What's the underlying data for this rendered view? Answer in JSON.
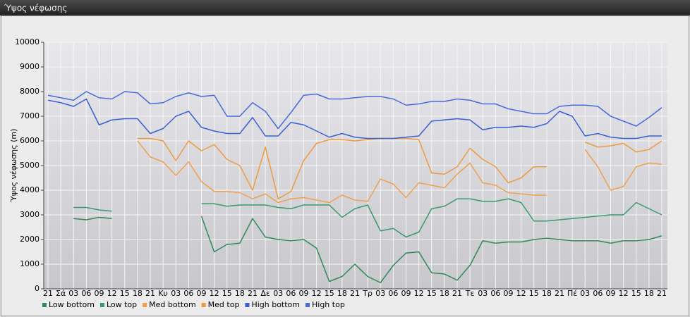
{
  "chart_data": {
    "type": "line",
    "title": "Ύψος νέφωσης",
    "y_label": "Ύψος νέφωσης (m)",
    "categories": [
      "21",
      "Σά",
      "03",
      "06",
      "09",
      "12",
      "15",
      "18",
      "21",
      "Κυ",
      "03",
      "06",
      "09",
      "12",
      "15",
      "18",
      "21",
      "Δε",
      "03",
      "06",
      "09",
      "12",
      "15",
      "18",
      "21",
      "Τρ",
      "03",
      "06",
      "09",
      "12",
      "15",
      "18",
      "21",
      "Τε",
      "03",
      "06",
      "09",
      "12",
      "15",
      "18",
      "21",
      "Πέ",
      "03",
      "06",
      "09",
      "12",
      "15",
      "18",
      "21"
    ],
    "ylim": [
      0,
      10000
    ],
    "yticks": [
      0,
      1000,
      2000,
      3000,
      4000,
      5000,
      6000,
      7000,
      8000,
      9000,
      10000
    ],
    "grid": true,
    "legend": "bottom-left",
    "series": [
      {
        "name": "Low bottom",
        "color": "#2e8b57",
        "values": [
          null,
          null,
          2850,
          2800,
          2900,
          2850,
          null,
          null,
          null,
          null,
          null,
          null,
          2950,
          1500,
          1800,
          1850,
          2850,
          2100,
          2000,
          1950,
          2000,
          1650,
          300,
          500,
          1000,
          500,
          250,
          950,
          1450,
          1500,
          650,
          600,
          350,
          950,
          1950,
          1850,
          1900,
          1900,
          2000,
          2050,
          2000,
          1950,
          1950,
          1950,
          1850,
          1950,
          1950,
          2000,
          2150
        ]
      },
      {
        "name": "Low top",
        "color": "#3a9a6a",
        "values": [
          null,
          null,
          3300,
          3300,
          3200,
          3150,
          null,
          null,
          null,
          null,
          null,
          null,
          3450,
          3450,
          3350,
          3400,
          3400,
          3400,
          3300,
          3250,
          3400,
          3400,
          3400,
          2900,
          3250,
          3400,
          2350,
          2450,
          2100,
          2300,
          3250,
          3350,
          3650,
          3650,
          3550,
          3550,
          3650,
          3500,
          2750,
          2750,
          2800,
          2850,
          2900,
          2950,
          3000,
          3000,
          3500,
          3250,
          3000
        ]
      },
      {
        "name": "Med bottom",
        "color": "#f0a050",
        "values": [
          null,
          null,
          null,
          null,
          null,
          null,
          null,
          6000,
          5350,
          5150,
          4600,
          5150,
          4350,
          3950,
          3950,
          3900,
          3650,
          3850,
          3500,
          3650,
          3700,
          3600,
          3500,
          3800,
          3600,
          3550,
          4450,
          4250,
          3700,
          4300,
          4200,
          4100,
          4650,
          5100,
          4300,
          4200,
          3900,
          3850,
          3800,
          3800,
          null,
          null,
          5650,
          4950,
          4000,
          4150,
          4950,
          5100,
          5050
        ]
      },
      {
        "name": "Med top",
        "color": "#ee9a40",
        "values": [
          null,
          null,
          null,
          null,
          null,
          null,
          null,
          6100,
          6100,
          6000,
          5200,
          6000,
          5600,
          5850,
          5250,
          5000,
          4000,
          5750,
          3650,
          3950,
          5200,
          5900,
          6050,
          6050,
          6000,
          6050,
          6100,
          6100,
          6100,
          6050,
          4700,
          4650,
          4950,
          5700,
          5250,
          4950,
          4300,
          4500,
          4950,
          4950,
          null,
          null,
          5950,
          5750,
          5800,
          5900,
          5550,
          5650,
          6000
        ]
      },
      {
        "name": "High bottom",
        "color": "#3a5fd0",
        "values": [
          7650,
          7550,
          7400,
          7700,
          6650,
          6850,
          6900,
          6900,
          6300,
          6500,
          7000,
          7200,
          6550,
          6400,
          6300,
          6300,
          6950,
          6200,
          6200,
          6750,
          6650,
          6400,
          6150,
          6300,
          6150,
          6100,
          6100,
          6100,
          6150,
          6200,
          6800,
          6850,
          6900,
          6850,
          6450,
          6550,
          6550,
          6600,
          6550,
          6700,
          7200,
          7000,
          6200,
          6300,
          6150,
          6100,
          6100,
          6200,
          6200
        ]
      },
      {
        "name": "High top",
        "color": "#4a6ad8",
        "values": [
          7850,
          7750,
          7650,
          8000,
          7750,
          7700,
          8000,
          7950,
          7500,
          7550,
          7800,
          7950,
          7800,
          7850,
          7000,
          7000,
          7550,
          7200,
          6500,
          7150,
          7850,
          7900,
          7700,
          7700,
          7750,
          7800,
          7800,
          7700,
          7450,
          7500,
          7600,
          7600,
          7700,
          7650,
          7500,
          7500,
          7300,
          7200,
          7100,
          7100,
          7400,
          7450,
          7450,
          7400,
          7000,
          6800,
          6600,
          6950,
          7350
        ]
      }
    ]
  }
}
